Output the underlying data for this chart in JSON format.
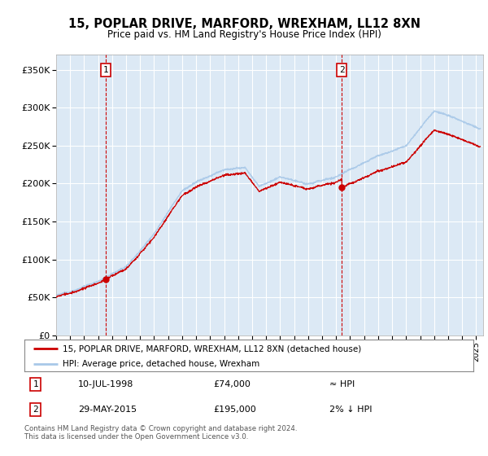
{
  "title": "15, POPLAR DRIVE, MARFORD, WREXHAM, LL12 8XN",
  "subtitle": "Price paid vs. HM Land Registry's House Price Index (HPI)",
  "ylim": [
    0,
    370000
  ],
  "yticks": [
    0,
    50000,
    100000,
    150000,
    200000,
    250000,
    300000,
    350000
  ],
  "ytick_labels": [
    "£0",
    "£50K",
    "£100K",
    "£150K",
    "£200K",
    "£250K",
    "£300K",
    "£350K"
  ],
  "background_color": "#dce9f5",
  "grid_color": "#ffffff",
  "hpi_color": "#a8c8e8",
  "price_color": "#cc0000",
  "sale1_x": 1998.53,
  "sale1_y": 74000,
  "sale2_x": 2015.41,
  "sale2_y": 195000,
  "legend_label1": "15, POPLAR DRIVE, MARFORD, WREXHAM, LL12 8XN (detached house)",
  "legend_label2": "HPI: Average price, detached house, Wrexham",
  "note1_date": "10-JUL-1998",
  "note1_price": "£74,000",
  "note1_hpi": "≈ HPI",
  "note2_date": "29-MAY-2015",
  "note2_price": "£195,000",
  "note2_hpi": "2% ↓ HPI",
  "footer": "Contains HM Land Registry data © Crown copyright and database right 2024.\nThis data is licensed under the Open Government Licence v3.0.",
  "xmin": 1995.0,
  "xmax": 2025.5
}
